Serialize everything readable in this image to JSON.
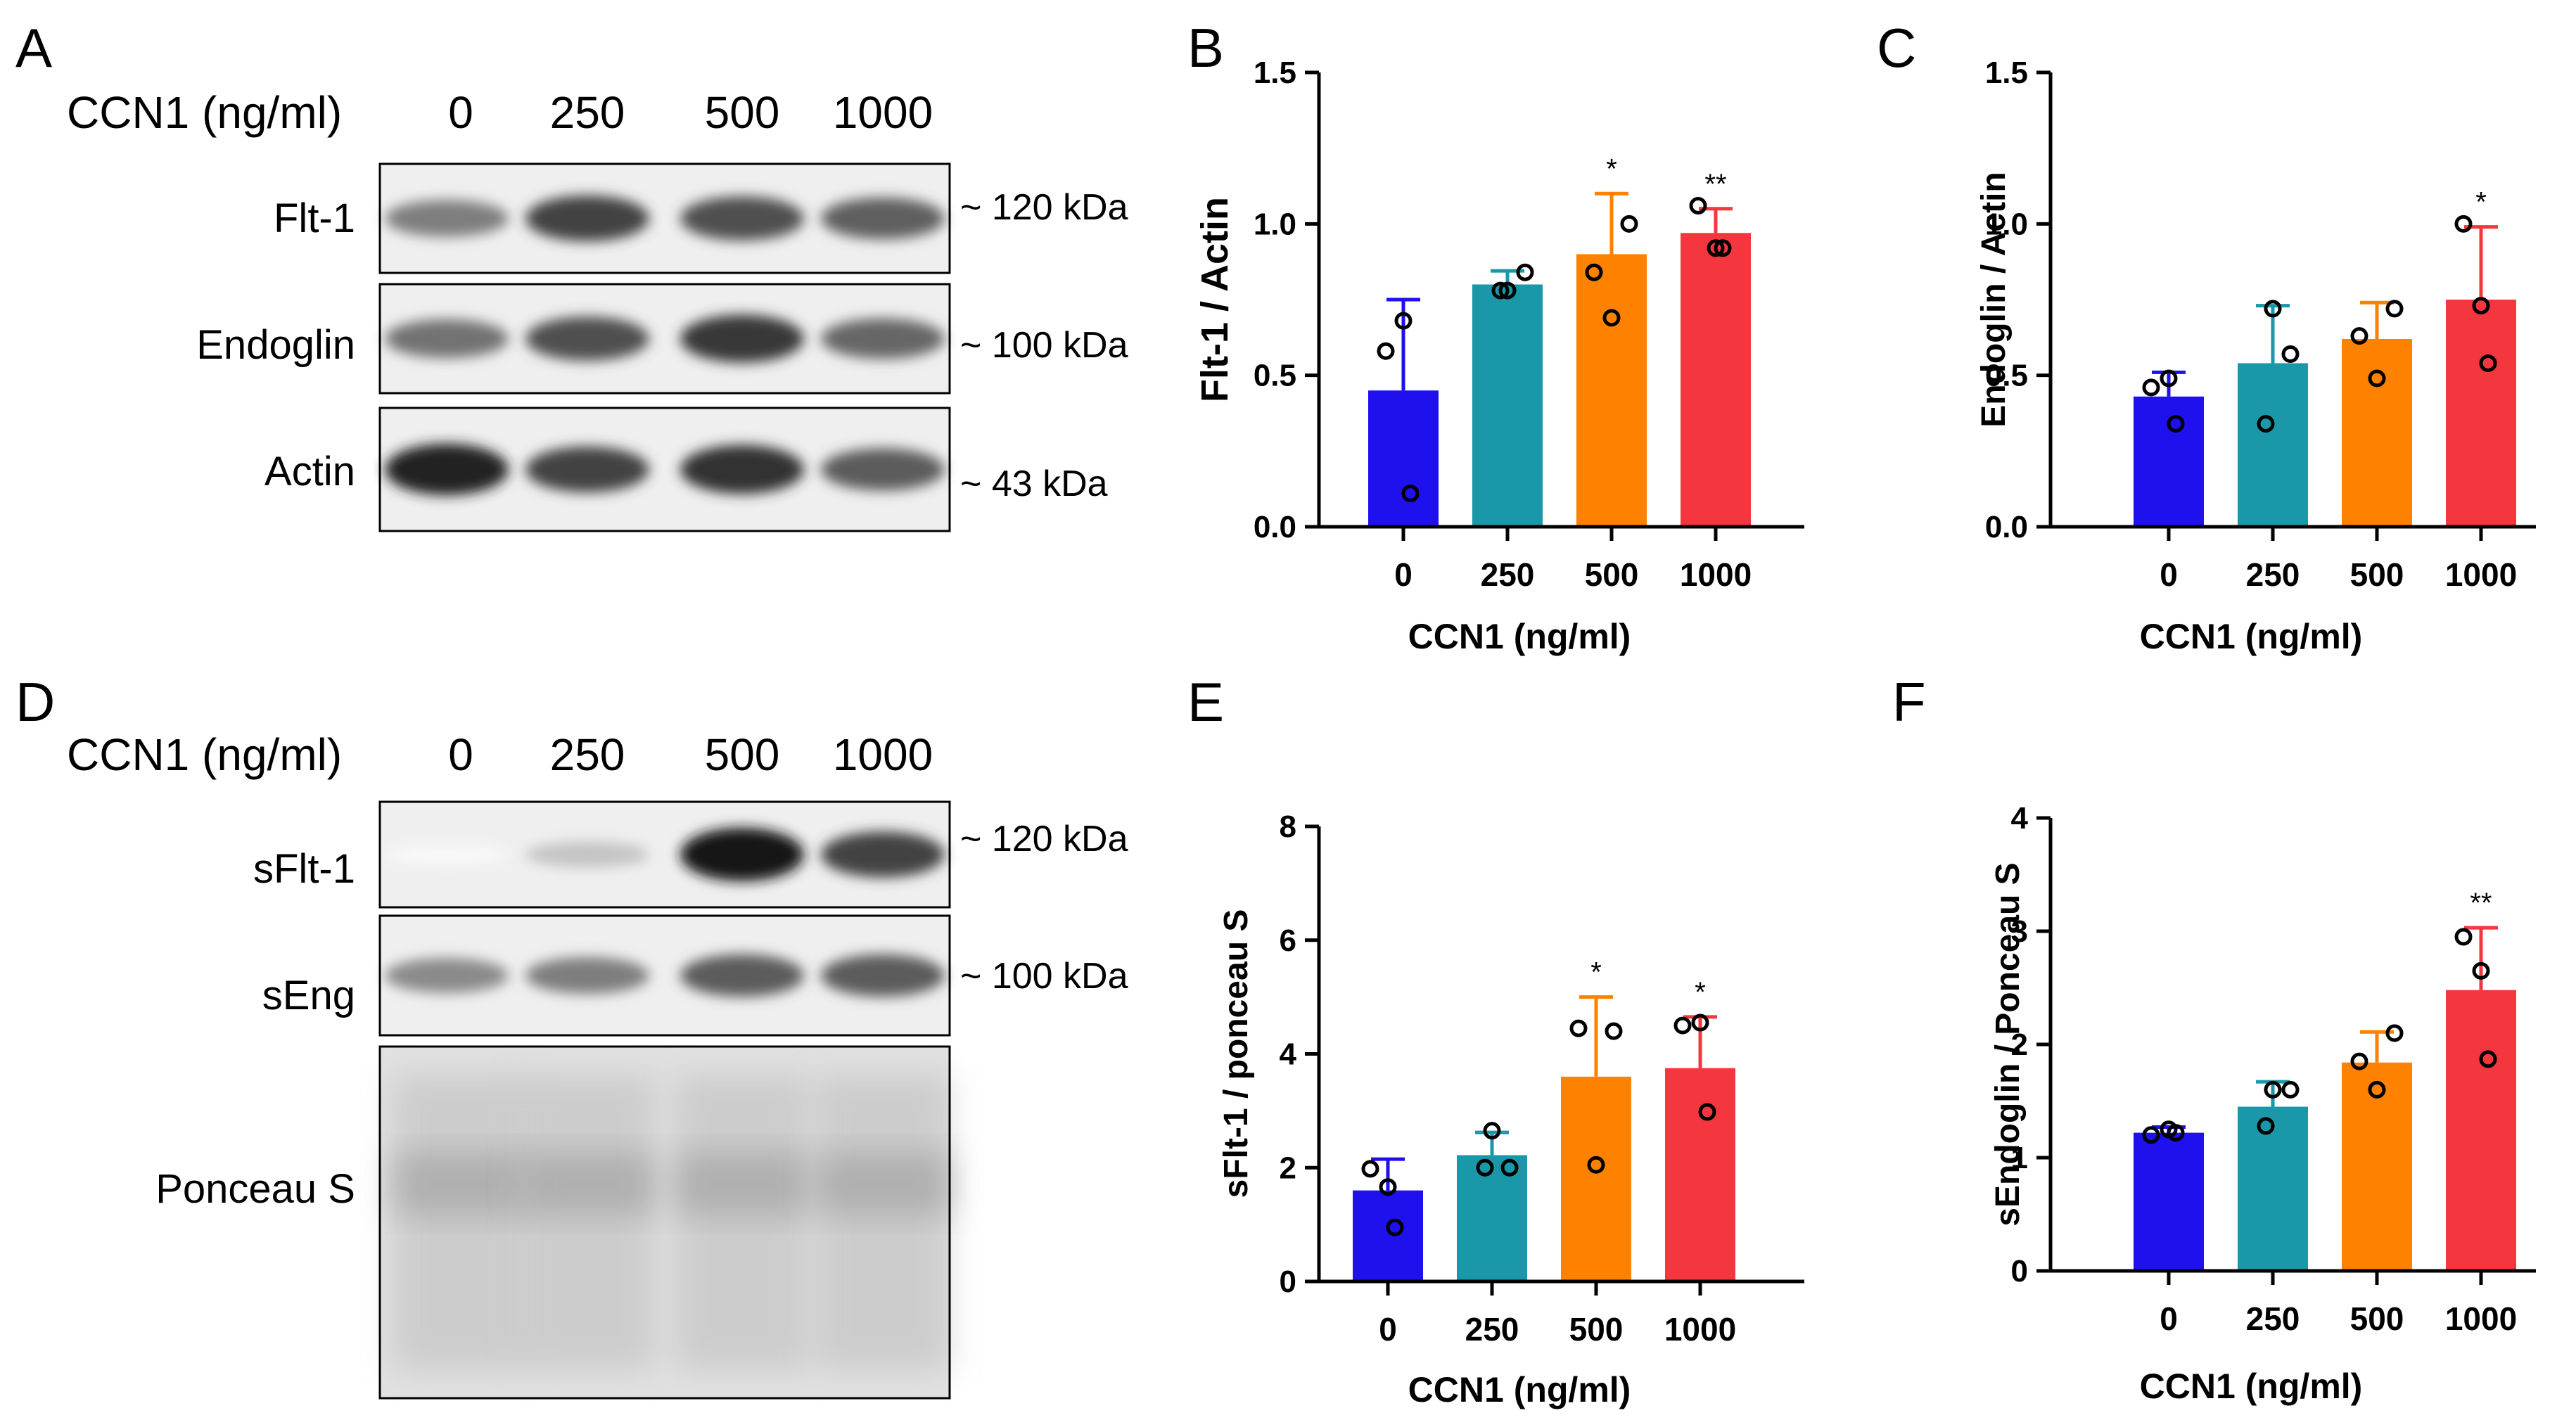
{
  "panel_letters": [
    "A",
    "B",
    "C",
    "D",
    "E",
    "F"
  ],
  "colors": {
    "c0": "#1f10ee",
    "c250": "#1a97a8",
    "c500": "#ff8100",
    "c1000": "#f4373f"
  },
  "blots": [
    {
      "header_label": "CCN1 (ng/ml)",
      "lanes": [
        "0",
        "250",
        "500",
        "1000"
      ],
      "bands": [
        {
          "label": "Flt-1",
          "marker": "~ 120 kDa",
          "intensity": [
            0.55,
            0.8,
            0.75,
            0.68
          ]
        },
        {
          "label": "Endoglin",
          "marker": "~ 100 kDa",
          "intensity": [
            0.6,
            0.75,
            0.85,
            0.65
          ]
        },
        {
          "label": "Actin",
          "marker": "~ 43 kDa",
          "intensity": [
            0.95,
            0.8,
            0.88,
            0.7
          ]
        }
      ]
    },
    {
      "header_label": "CCN1 (ng/ml)",
      "lanes": [
        "0",
        "250",
        "500",
        "1000"
      ],
      "bands": [
        {
          "label": "sFlt-1",
          "marker": "~ 120 kDa",
          "intensity": [
            0.02,
            0.25,
            1.0,
            0.8
          ]
        },
        {
          "label": "sEng",
          "marker": "~ 100 kDa",
          "intensity": [
            0.5,
            0.55,
            0.7,
            0.7
          ]
        },
        {
          "label": "Ponceau S",
          "marker": "",
          "intensity": [
            0.2,
            0.2,
            0.22,
            0.22
          ]
        }
      ]
    }
  ],
  "chart_data": [
    {
      "panel": "B",
      "type": "bar",
      "title": "",
      "xlabel": "CCN1 (ng/ml)",
      "ylabel": "Flt-1 / Actin",
      "categories": [
        "0",
        "250",
        "500",
        "1000"
      ],
      "values": [
        0.45,
        0.8,
        0.9,
        0.97
      ],
      "errors": [
        0.3,
        0.045,
        0.2,
        0.08
      ],
      "points": [
        [
          0.58,
          0.68,
          0.11
        ],
        [
          0.78,
          0.84,
          0.78
        ],
        [
          1.0,
          0.84,
          0.69
        ],
        [
          1.06,
          0.92,
          0.92
        ]
      ],
      "significance": [
        "",
        "",
        "*",
        "**"
      ],
      "ylim": [
        0,
        1.5
      ],
      "yticks": [
        "0.0",
        "0.5",
        "1.0",
        "1.5"
      ],
      "ylabel_bold": true
    },
    {
      "panel": "C",
      "type": "bar",
      "title": "",
      "xlabel": "CCN1 (ng/ml)",
      "ylabel": "Endoglin / Actin",
      "categories": [
        "0",
        "250",
        "500",
        "1000"
      ],
      "values": [
        0.43,
        0.54,
        0.62,
        0.75
      ],
      "errors": [
        0.08,
        0.19,
        0.12,
        0.24
      ],
      "points": [
        [
          0.46,
          0.49,
          0.34
        ],
        [
          0.72,
          0.57,
          0.34
        ],
        [
          0.72,
          0.63,
          0.49
        ],
        [
          1.0,
          0.73,
          0.54
        ]
      ],
      "significance": [
        "",
        "",
        "",
        "*"
      ],
      "ylim": [
        0,
        1.5
      ],
      "yticks": [
        "0.0",
        "0.5",
        "1.0",
        "1.5"
      ],
      "ylabel_bold": false
    },
    {
      "panel": "E",
      "type": "bar",
      "title": "",
      "xlabel": "CCN1 (ng/ml)",
      "ylabel": "sFlt-1 / ponceau S",
      "categories": [
        "0",
        "250",
        "500",
        "1000"
      ],
      "values": [
        1.6,
        2.22,
        3.6,
        3.75
      ],
      "errors": [
        0.55,
        0.4,
        1.4,
        0.9
      ],
      "points": [
        [
          1.98,
          1.66,
          0.95
        ],
        [
          2.65,
          2.0,
          2.0
        ],
        [
          4.4,
          4.45,
          2.05
        ],
        [
          4.5,
          4.55,
          2.98
        ]
      ],
      "significance": [
        "",
        "",
        "*",
        "*"
      ],
      "ylim": [
        0,
        8
      ],
      "yticks": [
        "0",
        "2",
        "4",
        "6",
        "8"
      ],
      "ylabel_bold": false
    },
    {
      "panel": "F",
      "type": "bar",
      "title": "",
      "xlabel": "CCN1 (ng/ml)",
      "ylabel": "sEndoglin / Ponceau S",
      "categories": [
        "0",
        "250",
        "500",
        "1000"
      ],
      "values": [
        1.22,
        1.45,
        1.84,
        2.48
      ],
      "errors": [
        0.05,
        0.22,
        0.27,
        0.55
      ],
      "points": [
        [
          1.2,
          1.25,
          1.22
        ],
        [
          1.6,
          1.6,
          1.28
        ],
        [
          2.1,
          1.85,
          1.6
        ],
        [
          2.95,
          2.65,
          1.87
        ]
      ],
      "significance": [
        "",
        "",
        "",
        "**"
      ],
      "ylim": [
        0,
        4
      ],
      "yticks": [
        "0",
        "1",
        "2",
        "3",
        "4"
      ],
      "ylabel_bold": false
    }
  ]
}
